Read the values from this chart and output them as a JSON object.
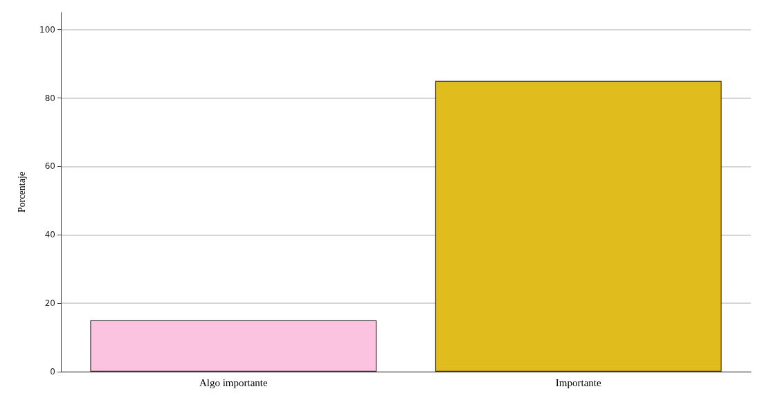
{
  "chart_data": {
    "type": "bar",
    "ylabel": "Porcentaje",
    "categories": [
      "Algo importante",
      "Importante"
    ],
    "values": [
      15,
      85
    ],
    "colors": [
      "#fcc3e0",
      "#e0bc1c"
    ],
    "ylim": [
      0,
      105
    ],
    "yticks": [
      0,
      20,
      40,
      60,
      80,
      100
    ],
    "grid": "y"
  }
}
